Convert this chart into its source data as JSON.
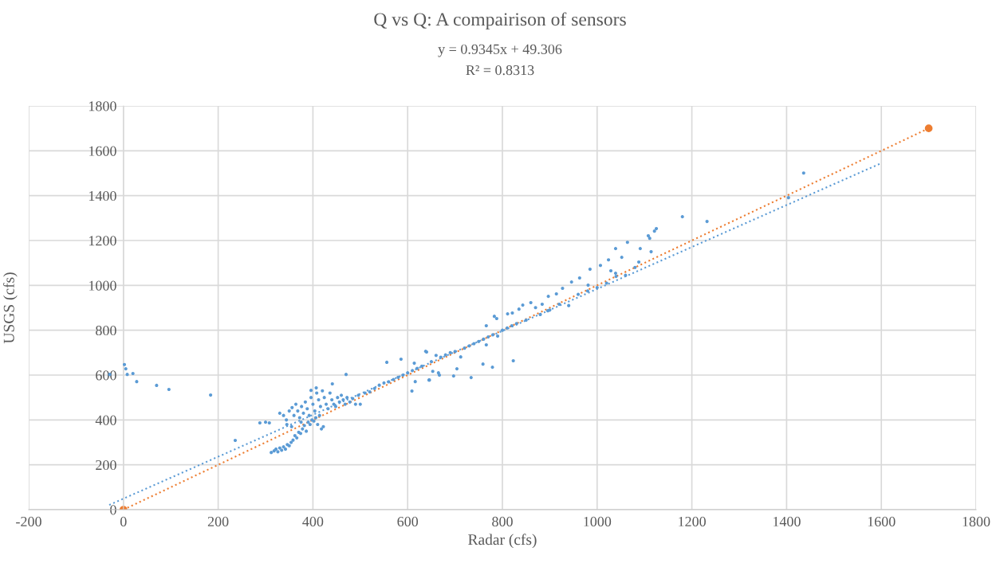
{
  "chart_data": {
    "type": "scatter",
    "title": "Q vs Q: A compairison of sensors",
    "xlabel": "Radar (cfs)",
    "ylabel": "USGS (cfs)",
    "annotations": [
      "y = 0.9345x + 49.306",
      "R² = 0.8313"
    ],
    "xlim": [
      -200,
      1800
    ],
    "xticks": [
      -200,
      0,
      200,
      400,
      600,
      800,
      1000,
      1200,
      1400,
      1600,
      1800
    ],
    "ylim": [
      0,
      1800
    ],
    "yticks": [
      0,
      200,
      400,
      600,
      800,
      1000,
      1200,
      1400,
      1600,
      1800
    ],
    "grid": true,
    "series": [
      {
        "marker": "circle",
        "color": "#5b9bd5",
        "x": [
          -29,
          2,
          5,
          8,
          20,
          28,
          70,
          96,
          184,
          236,
          288,
          308,
          470,
          441,
          396,
          407,
          312,
          318,
          322,
          326,
          330,
          334,
          338,
          342,
          346,
          350,
          354,
          358,
          362,
          366,
          370,
          374,
          378,
          382,
          386,
          390,
          394,
          398,
          402,
          406,
          410,
          414,
          418,
          422,
          330,
          338,
          344,
          350,
          356,
          360,
          364,
          368,
          372,
          376,
          380,
          384,
          388,
          392,
          396,
          400,
          404,
          408,
          412,
          416,
          420,
          424,
          428,
          432,
          436,
          440,
          444,
          448,
          452,
          456,
          460,
          464,
          468,
          472,
          478,
          484,
          490,
          496,
          500,
          300,
          345,
          355,
          375,
          510,
          520,
          530,
          540,
          550,
          556,
          560,
          570,
          580,
          586,
          590,
          600,
          609,
          610,
          614,
          616,
          620,
          630,
          638,
          640,
          645,
          646,
          650,
          653,
          660,
          665,
          667,
          670,
          680,
          690,
          697,
          700,
          704,
          712,
          720,
          730,
          734,
          740,
          750,
          759,
          760,
          766,
          766,
          770,
          779,
          780,
          783,
          788,
          790,
          800,
          810,
          811,
          820,
          821,
          823,
          830,
          835,
          843,
          850,
          860,
          870,
          880,
          884,
          896,
          897,
          900,
          914,
          920,
          927,
          940,
          946,
          960,
          963,
          980,
          981,
          985,
          1000,
          1007,
          1020,
          1024,
          1029,
          1039,
          1039,
          1040,
          1052,
          1060,
          1064,
          1080,
          1088,
          1091,
          1108,
          1111,
          1114,
          1121,
          1125,
          1180,
          1232,
          1404,
          1436
        ],
        "values": [
          603,
          647,
          628,
          603,
          607,
          571,
          554,
          536,
          511,
          309,
          387,
          387,
          603,
          561,
          532,
          543,
          255,
          262,
          270,
          258,
          275,
          265,
          280,
          270,
          290,
          285,
          300,
          310,
          330,
          320,
          345,
          340,
          360,
          375,
          350,
          390,
          380,
          400,
          395,
          410,
          380,
          420,
          360,
          370,
          430,
          420,
          400,
          440,
          455,
          420,
          470,
          440,
          410,
          460,
          430,
          480,
          450,
          420,
          500,
          470,
          440,
          520,
          490,
          460,
          530,
          500,
          470,
          450,
          520,
          490,
          470,
          460,
          500,
          480,
          510,
          490,
          470,
          500,
          480,
          495,
          470,
          510,
          470,
          390,
          380,
          370,
          390,
          520,
          525,
          540,
          555,
          565,
          657,
          570,
          580,
          590,
          671,
          600,
          610,
          529,
          620,
          653,
          571,
          630,
          640,
          706,
          703,
          578,
          578,
          660,
          617,
          688,
          610,
          600,
          680,
          690,
          700,
          596,
          705,
          628,
          681,
          720,
          730,
          589,
          740,
          750,
          649,
          760,
          735,
          820,
          770,
          635,
          780,
          862,
          852,
          774,
          800,
          810,
          873,
          820,
          877,
          664,
          830,
          894,
          912,
          845,
          923,
          901,
          870,
          916,
          887,
          951,
          890,
          962,
          916,
          987,
          910,
          1015,
          960,
          1033,
          975,
          1001,
          1072,
          990,
          1089,
          1010,
          1114,
          1065,
          1054,
          1164,
          1040,
          1125,
          1045,
          1192,
          1080,
          1104,
          1164,
          1221,
          1210,
          1150,
          1242,
          1253,
          1306,
          1285,
          1391,
          1501
        ]
      },
      {
        "type": "line",
        "color": "#5b9bd5",
        "line_style": "dotted",
        "marker": "none",
        "x": [
          -30,
          1600
        ],
        "values": [
          21,
          1545
        ]
      },
      {
        "type": "line",
        "color": "#ed7d31",
        "line_style": "dotted",
        "marker": "circle",
        "x": [
          0,
          1700
        ],
        "values": [
          0,
          1700
        ]
      }
    ]
  }
}
